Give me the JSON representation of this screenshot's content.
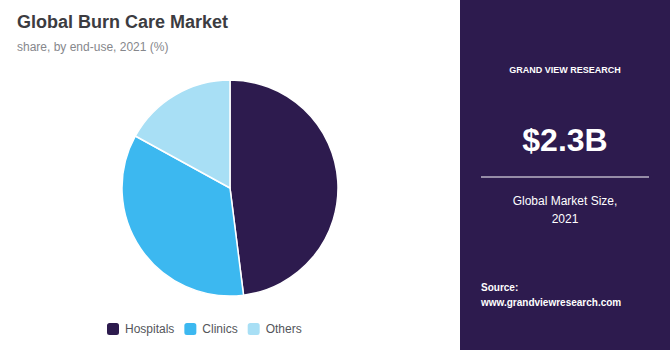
{
  "chart_data": {
    "type": "pie",
    "title": "Global Burn Care Market",
    "subtitle": "share, by end-use, 2021 (%)",
    "categories": [
      "Hospitals",
      "Clinics",
      "Others"
    ],
    "values": [
      48,
      35,
      17
    ],
    "colors": [
      "#2d1b4e",
      "#3cb8f0",
      "#a8dff5"
    ],
    "legend": "bottom",
    "annotations": [
      "GRAND VIEW RESEARCH",
      "$2.3B",
      "Global Market Size,\n2021",
      "Source:\nwww.grandviewresearch.com"
    ]
  }
}
